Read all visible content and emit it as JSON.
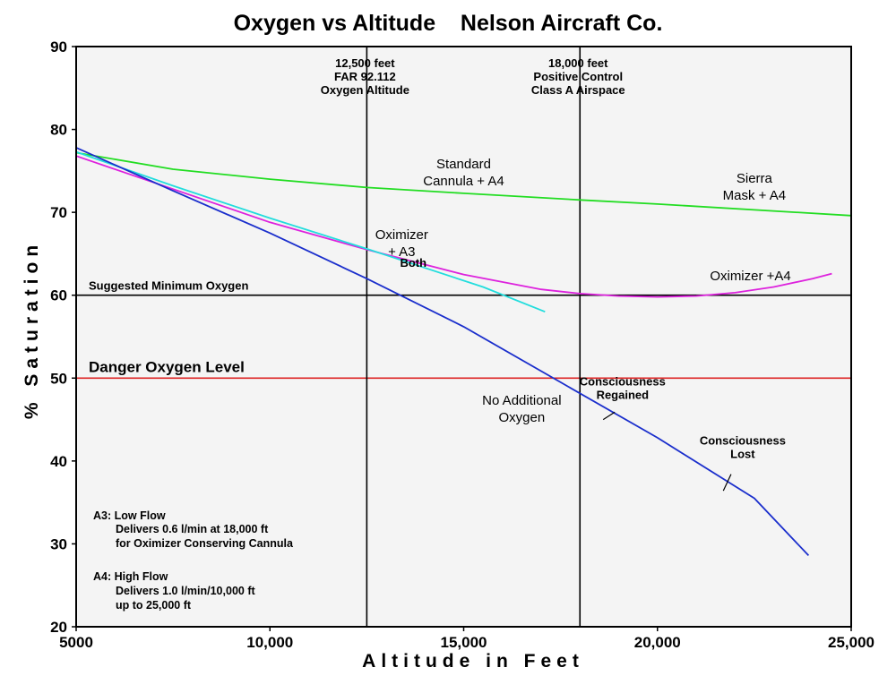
{
  "chart_data": {
    "type": "line",
    "title": "Oxygen vs Altitude    Nelson Aircraft Co.",
    "xlabel": "Altitude in Feet",
    "ylabel": "% Saturation",
    "xlim": [
      5000,
      25000
    ],
    "ylim": [
      20,
      90
    ],
    "x_ticks": [
      {
        "value": 5000,
        "label": "5000"
      },
      {
        "value": 10000,
        "label": "10,000"
      },
      {
        "value": 15000,
        "label": "15,000"
      },
      {
        "value": 20000,
        "label": "20,000"
      },
      {
        "value": 25000,
        "label": "25,000"
      }
    ],
    "y_ticks": [
      {
        "value": 20,
        "label": "20"
      },
      {
        "value": 30,
        "label": "30"
      },
      {
        "value": 40,
        "label": "40"
      },
      {
        "value": 50,
        "label": "50"
      },
      {
        "value": 60,
        "label": "60"
      },
      {
        "value": 70,
        "label": "70"
      },
      {
        "value": 80,
        "label": "80"
      },
      {
        "value": 90,
        "label": "90"
      }
    ],
    "series": [
      {
        "name": "Sierra Mask + A4",
        "color": "#22dd22",
        "points": [
          [
            5000,
            77.2
          ],
          [
            7500,
            75.2
          ],
          [
            10000,
            74.0
          ],
          [
            12500,
            73.0
          ],
          [
            15000,
            72.3
          ],
          [
            18000,
            71.5
          ],
          [
            20000,
            71.0
          ],
          [
            25000,
            69.6
          ]
        ]
      },
      {
        "name": "Oximizer +A4",
        "color": "#dd22dd",
        "points": [
          [
            5000,
            76.8
          ],
          [
            7500,
            72.8
          ],
          [
            10000,
            68.8
          ],
          [
            12500,
            65.5
          ],
          [
            15000,
            62.5
          ],
          [
            17000,
            60.7
          ],
          [
            18000,
            60.2
          ],
          [
            19000,
            59.9
          ],
          [
            20000,
            59.8
          ],
          [
            21000,
            59.9
          ],
          [
            22000,
            60.3
          ],
          [
            23000,
            61.0
          ],
          [
            24000,
            62.0
          ],
          [
            24500,
            62.6
          ]
        ]
      },
      {
        "name": "Oximizer + A3",
        "color": "#22dddd",
        "points": [
          [
            5000,
            77.3
          ],
          [
            7500,
            73.2
          ],
          [
            10000,
            69.3
          ],
          [
            12500,
            65.6
          ],
          [
            14000,
            63.3
          ],
          [
            15500,
            61.0
          ],
          [
            17100,
            58.0
          ]
        ]
      },
      {
        "name": "No Additional Oxygen",
        "color": "#1a2ecc",
        "points": [
          [
            5000,
            77.8
          ],
          [
            7500,
            72.6
          ],
          [
            10000,
            67.5
          ],
          [
            12500,
            62.0
          ],
          [
            15000,
            56.2
          ],
          [
            17500,
            49.5
          ],
          [
            20000,
            42.8
          ],
          [
            22500,
            35.5
          ],
          [
            23900,
            28.6
          ]
        ]
      }
    ],
    "reference_lines": [
      {
        "orientation": "horizontal",
        "value": 60,
        "color": "#000000",
        "label": "Suggested Minimum Oxygen"
      },
      {
        "orientation": "horizontal",
        "value": 50,
        "color": "#dd2222",
        "label": "Danger Oxygen Level"
      },
      {
        "orientation": "vertical",
        "value": 12500,
        "color": "#000000",
        "label": [
          "12,500 feet",
          "FAR 92.112",
          "Oxygen Altitude"
        ]
      },
      {
        "orientation": "vertical",
        "value": 18000,
        "color": "#000000",
        "label": [
          "18,000 feet",
          "Positive Control",
          "Class A Airspace"
        ]
      }
    ],
    "annotations": [
      {
        "text": [
          "Standard",
          "Cannula + A4"
        ],
        "x": 15000,
        "y": 75.3,
        "style": "ann-md"
      },
      {
        "text": [
          "Sierra",
          "Mask + A4"
        ],
        "x": 22500,
        "y": 73.6,
        "style": "ann-md"
      },
      {
        "text": [
          "Oximizer",
          "+ A3"
        ],
        "x": 13400,
        "y": 66.8,
        "style": "ann-md"
      },
      {
        "text": [
          "Both"
        ],
        "x": 13700,
        "y": 63.4,
        "style": "ann-sm"
      },
      {
        "text": [
          "Oximizer +A4"
        ],
        "x": 22400,
        "y": 61.8,
        "style": "ann-md"
      },
      {
        "text": [
          "No Additional",
          "Oxygen"
        ],
        "x": 16500,
        "y": 46.8,
        "style": "ann-md"
      },
      {
        "text": [
          "Consciousness",
          "Regained"
        ],
        "x": 19100,
        "y": 49.1,
        "style": "ann-sm"
      },
      {
        "text": [
          "Consciousness",
          "Lost"
        ],
        "x": 22200,
        "y": 42.0,
        "style": "ann-sm"
      }
    ],
    "notes": [
      "A3: Low Flow",
      "Delivers 0.6 l/min at 18,000 ft",
      "for Oximizer Conserving Cannula",
      "A4: High Flow",
      "Delivers 1.0 l/min/10,000 ft",
      "up to 25,000 ft"
    ],
    "legend": "none",
    "grid": false
  }
}
